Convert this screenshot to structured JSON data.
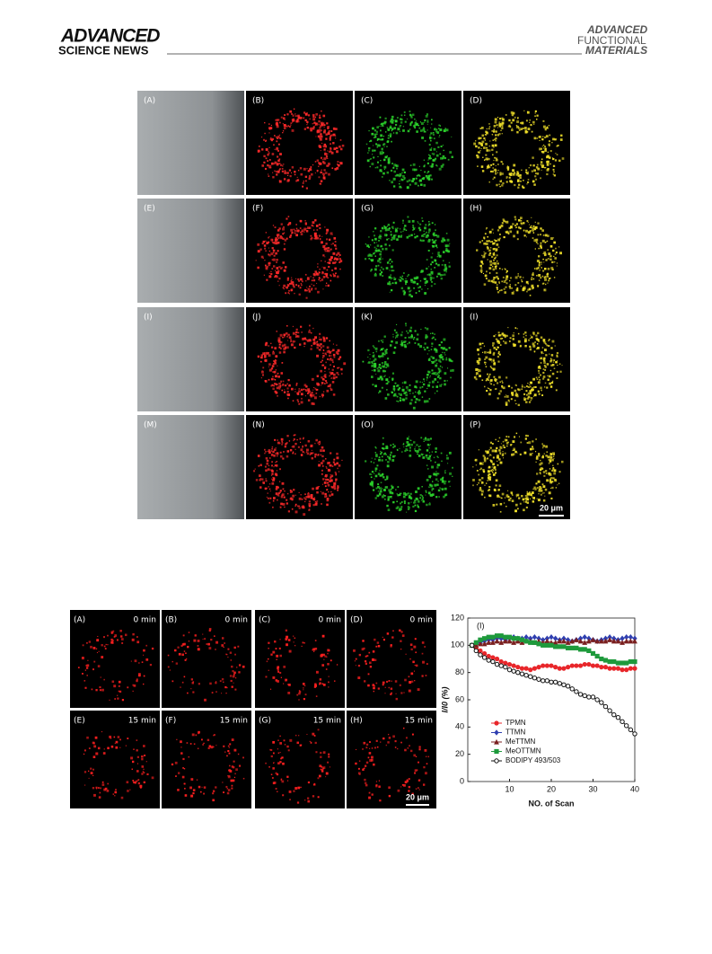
{
  "header": {
    "left_title": "ADVANCED",
    "left_subtitle": "SCIENCE NEWS",
    "right_line1": "ADVANCED",
    "right_line2": "FUNCTIONAL",
    "right_line3": "MATERIALS"
  },
  "figure_1": {
    "panels": [
      "(A)",
      "(B)",
      "(C)",
      "(D)",
      "(E)",
      "(F)",
      "(G)",
      "(H)",
      "(I)",
      "(J)",
      "(K)",
      "(I)",
      "(M)",
      "(N)",
      "(O)",
      "(P)"
    ],
    "scale_bar": "20 μm"
  },
  "figure_2": {
    "panels": [
      {
        "label": "(A)",
        "time": "0 min"
      },
      {
        "label": "(B)",
        "time": "0 min"
      },
      {
        "label": "(C)",
        "time": "0 min"
      },
      {
        "label": "(D)",
        "time": "0 min"
      },
      {
        "label": "(E)",
        "time": "15 min"
      },
      {
        "label": "(F)",
        "time": "15 min"
      },
      {
        "label": "(G)",
        "time": "15 min"
      },
      {
        "label": "(H)",
        "time": "15 min"
      }
    ],
    "scale_bar": "20 μm"
  },
  "chart_data": {
    "type": "line",
    "panel_label": "(I)",
    "x_label": "NO. of Scan",
    "y_label": "I/I0 (%)",
    "xlim": [
      0,
      40
    ],
    "xticks": [
      10,
      20,
      30,
      40
    ],
    "ylim": [
      0,
      120
    ],
    "yticks": [
      0,
      20,
      40,
      60,
      80,
      100,
      120
    ],
    "x": [
      1,
      2,
      3,
      4,
      5,
      6,
      7,
      8,
      9,
      10,
      11,
      12,
      13,
      14,
      15,
      16,
      17,
      18,
      19,
      20,
      21,
      22,
      23,
      24,
      25,
      26,
      27,
      28,
      29,
      30,
      31,
      32,
      33,
      34,
      35,
      36,
      37,
      38,
      39,
      40
    ],
    "series": [
      {
        "name": "TPMN",
        "color": "#e8262a",
        "marker": "circle",
        "values": [
          100,
          98,
          96,
          94,
          92,
          91,
          90,
          88,
          87,
          86,
          85,
          84,
          83,
          83,
          82,
          83,
          84,
          85,
          85,
          85,
          84,
          83,
          83,
          84,
          85,
          85,
          85,
          86,
          86,
          85,
          85,
          84,
          84,
          83,
          83,
          83,
          82,
          82,
          83,
          83
        ]
      },
      {
        "name": "TTMN",
        "color": "#2f3fb0",
        "marker": "diamond",
        "values": [
          100,
          101,
          102,
          103,
          104,
          104,
          105,
          105,
          104,
          105,
          106,
          105,
          105,
          106,
          105,
          106,
          105,
          104,
          105,
          106,
          105,
          104,
          105,
          104,
          103,
          104,
          105,
          106,
          105,
          104,
          103,
          104,
          105,
          106,
          105,
          104,
          105,
          106,
          106,
          105
        ]
      },
      {
        "name": "MeTTMN",
        "color": "#7a1f1f",
        "marker": "triangle",
        "values": [
          100,
          100,
          101,
          101,
          102,
          102,
          103,
          102,
          103,
          103,
          102,
          103,
          102,
          103,
          103,
          102,
          103,
          102,
          103,
          102,
          102,
          103,
          103,
          102,
          103,
          104,
          103,
          102,
          103,
          104,
          103,
          103,
          103,
          104,
          103,
          103,
          102,
          103,
          103,
          103
        ]
      },
      {
        "name": "MeOTTMN",
        "color": "#1e9a3c",
        "marker": "square",
        "values": [
          100,
          102,
          104,
          105,
          106,
          106,
          107,
          107,
          106,
          106,
          105,
          105,
          104,
          103,
          102,
          102,
          101,
          100,
          100,
          100,
          99,
          99,
          99,
          98,
          98,
          98,
          97,
          97,
          96,
          94,
          92,
          90,
          89,
          88,
          88,
          87,
          87,
          87,
          88,
          88
        ]
      },
      {
        "name": "BODIPY 493/503",
        "color": "#111111",
        "marker": "open-circle",
        "values": [
          100,
          96,
          93,
          91,
          89,
          88,
          86,
          85,
          84,
          82,
          81,
          80,
          79,
          78,
          77,
          76,
          75,
          74,
          74,
          73,
          73,
          72,
          71,
          70,
          68,
          66,
          64,
          63,
          62,
          62,
          60,
          58,
          55,
          52,
          49,
          47,
          44,
          41,
          38,
          35
        ]
      }
    ]
  }
}
